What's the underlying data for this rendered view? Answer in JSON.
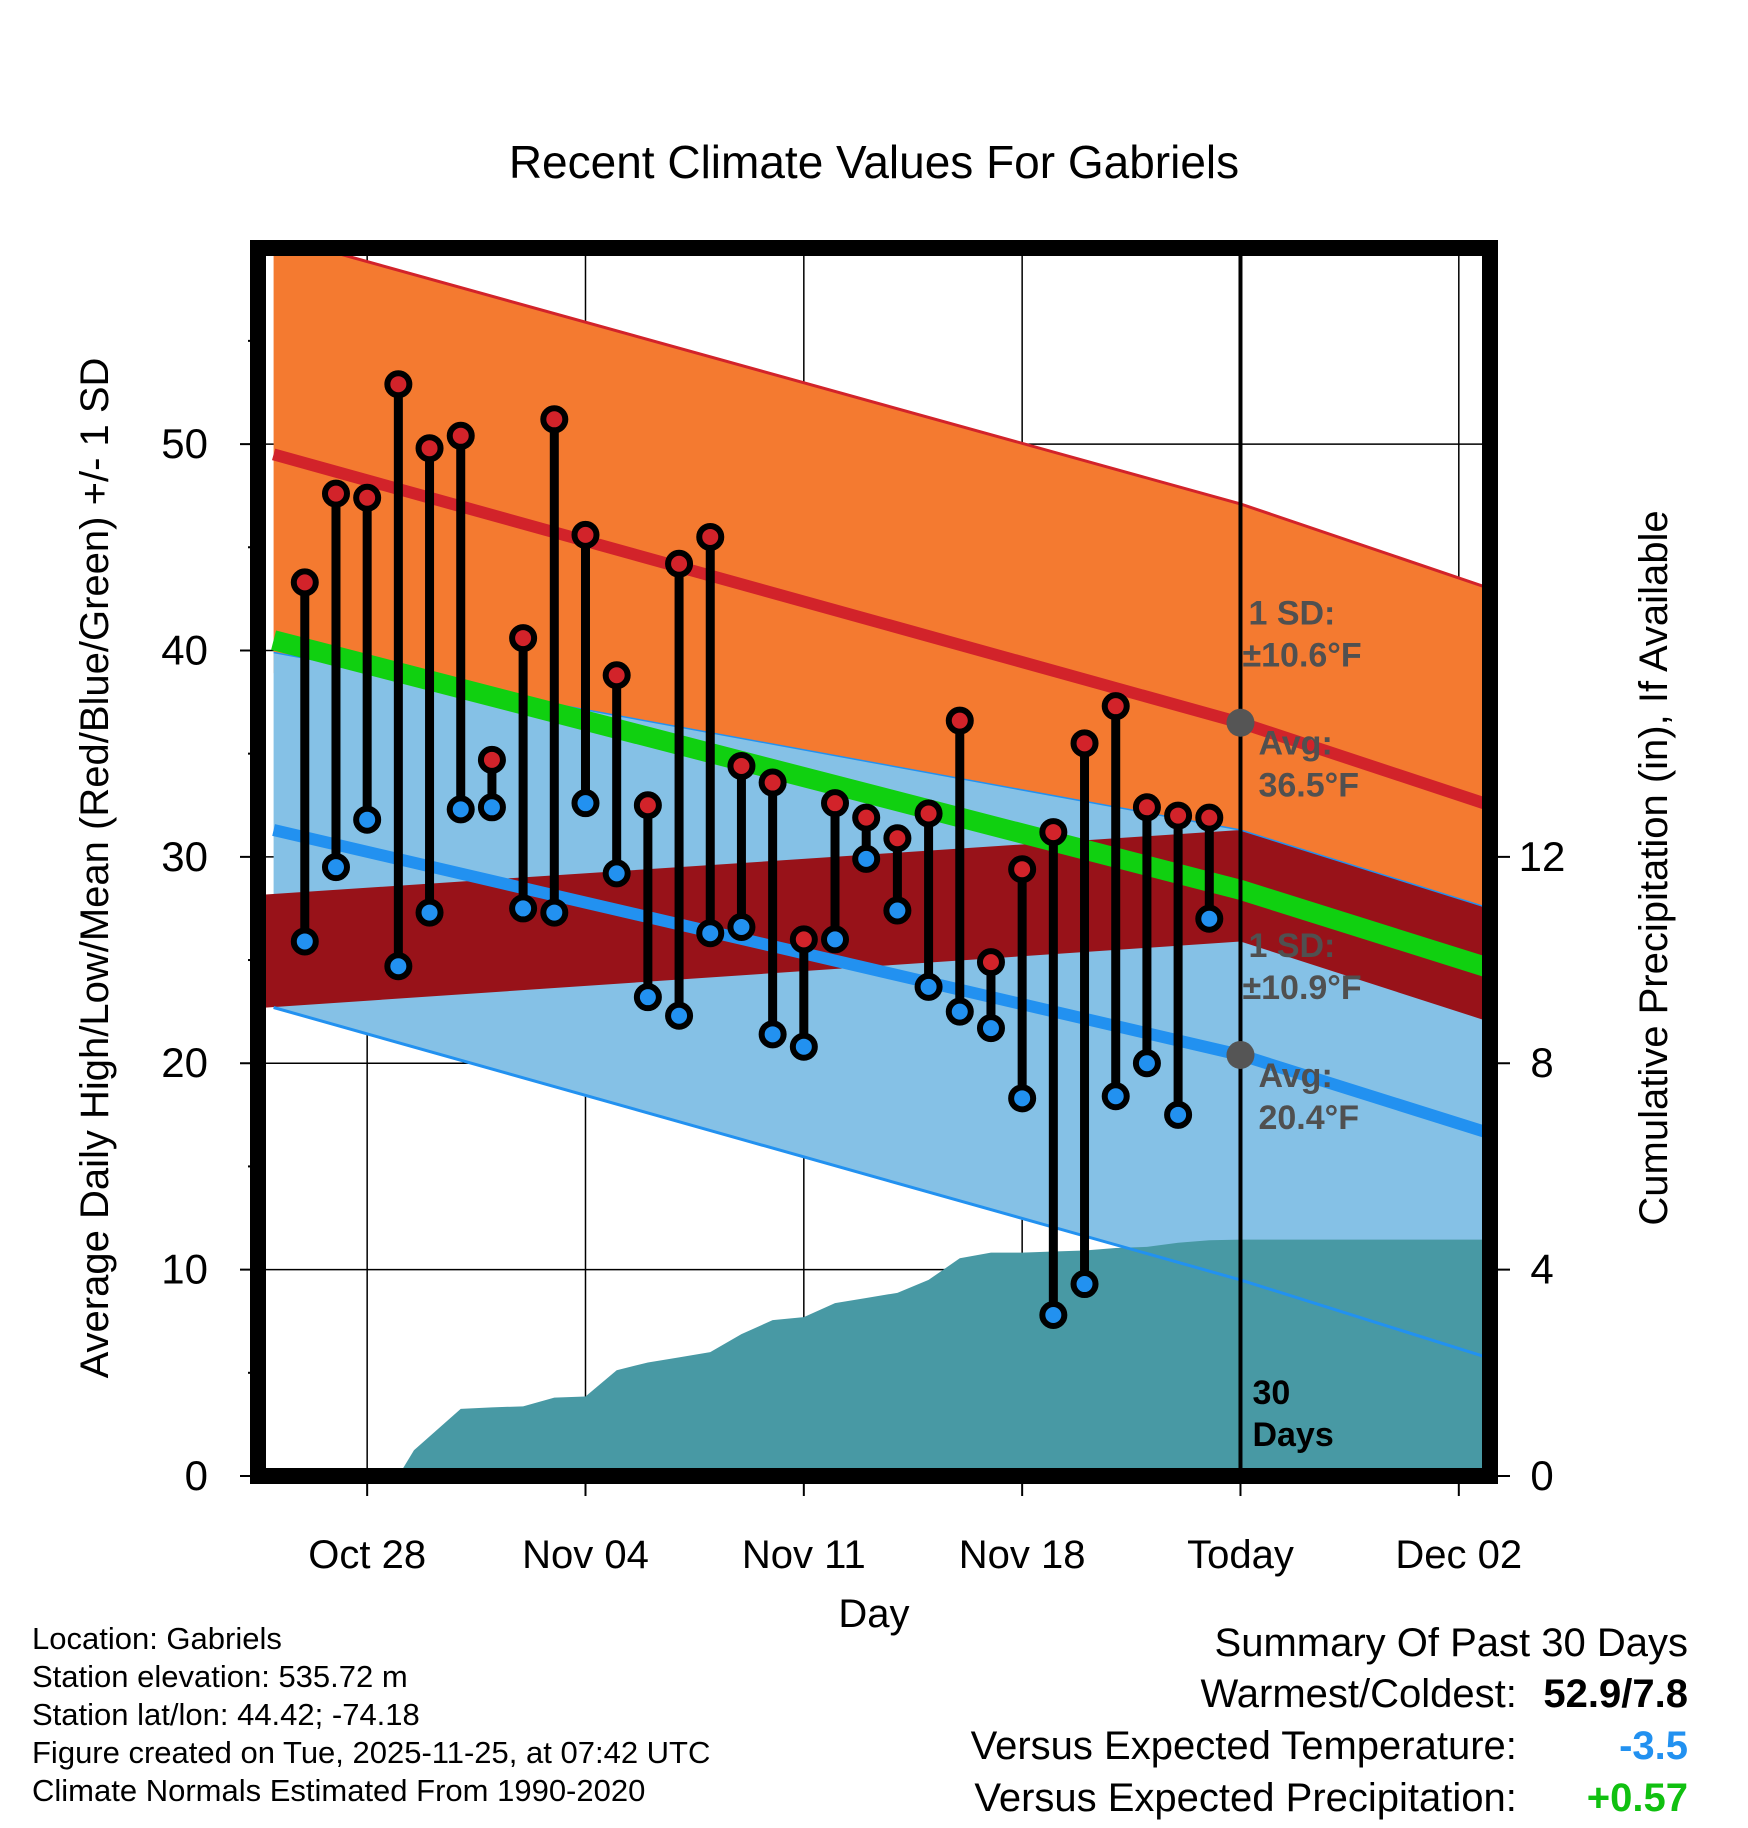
{
  "chart_data": {
    "type": "line",
    "title": "Recent Climate Values For Gabriels",
    "xlabel": "Day",
    "ylabel": "Average Daily High/Low/Mean (Red/Blue/Green) +/- 1 SD",
    "y2label": "Cumulative Precipitation (in), If Available",
    "xlim": [
      -3.5,
      36
    ],
    "ylim": [
      0,
      59.5
    ],
    "y2lim": [
      0,
      23.8
    ],
    "x_ticks": [
      {
        "x": 0,
        "label": "Oct 28"
      },
      {
        "x": 7,
        "label": "Nov 04"
      },
      {
        "x": 14,
        "label": "Nov 11"
      },
      {
        "x": 21,
        "label": "Nov 18"
      },
      {
        "x": 28,
        "label": "Today"
      },
      {
        "x": 35,
        "label": "Dec 02"
      }
    ],
    "y_ticks": [
      0,
      10,
      20,
      30,
      40,
      50
    ],
    "y2_ticks": [
      0,
      4,
      8,
      12
    ],
    "today_x": 28,
    "today_label": [
      "30",
      "Days"
    ],
    "normals": {
      "x": [
        -3,
        28,
        36
      ],
      "high_mean": [
        49.5,
        36.5,
        32.5
      ],
      "high_upper": [
        60.1,
        47.1,
        43.0
      ],
      "low_mean": [
        31.3,
        20.4,
        16.6
      ],
      "low_lower": [
        22.7,
        9.5,
        5.7
      ],
      "avg_mean": [
        40.5,
        28.4,
        24.6
      ]
    },
    "high_annotation": {
      "sd_label": "1 SD:",
      "sd_value": "±10.6°F",
      "avg_label": "Avg:",
      "avg_value": "36.5°F"
    },
    "low_annotation": {
      "sd_label": "1 SD:",
      "sd_value": "±10.9°F",
      "avg_label": "Avg:",
      "avg_value": "20.4°F"
    },
    "daily": {
      "x": [
        -2,
        -1,
        0,
        1,
        2,
        3,
        4,
        5,
        6,
        7,
        8,
        9,
        10,
        11,
        12,
        13,
        14,
        15,
        16,
        17,
        18,
        19,
        20,
        21,
        22,
        23,
        24,
        25,
        26,
        27
      ],
      "high": [
        43.3,
        47.6,
        47.4,
        52.9,
        49.8,
        50.4,
        34.7,
        40.6,
        51.2,
        45.6,
        38.8,
        32.5,
        44.2,
        45.5,
        34.4,
        33.6,
        26.0,
        32.6,
        31.9,
        30.9,
        32.1,
        36.6,
        24.9,
        29.4,
        31.2,
        35.5,
        37.3,
        32.4,
        32.0,
        31.9
      ],
      "low": [
        25.9,
        29.5,
        31.8,
        24.7,
        27.3,
        32.3,
        32.4,
        27.5,
        27.3,
        32.6,
        29.2,
        23.2,
        22.3,
        26.3,
        26.6,
        21.4,
        20.8,
        26.0,
        29.9,
        27.4,
        23.7,
        22.5,
        21.7,
        18.3,
        7.8,
        9.3,
        18.4,
        20.0,
        17.5,
        27.0
      ]
    },
    "precip": {
      "x": [
        -3,
        1,
        1.5,
        3,
        4,
        5,
        6,
        7,
        8,
        9,
        10,
        11,
        12,
        13,
        14,
        15,
        16,
        17,
        18,
        19,
        20,
        21,
        22,
        23,
        24,
        25,
        26,
        27,
        28,
        36
      ],
      "cum": [
        0,
        0,
        0.5,
        1.3,
        1.33,
        1.35,
        1.52,
        1.54,
        2.05,
        2.2,
        2.3,
        2.4,
        2.75,
        3.02,
        3.08,
        3.35,
        3.45,
        3.55,
        3.8,
        4.22,
        4.33,
        4.33,
        4.35,
        4.37,
        4.42,
        4.44,
        4.52,
        4.57,
        4.58,
        4.58
      ]
    }
  },
  "info": {
    "location": "Location: Gabriels",
    "elevation": "Station elevation: 535.72 m",
    "latlon": "Station lat/lon: 44.42; -74.18",
    "created": "Figure created on Tue, 2025-11-25, at 07:42 UTC",
    "normals": "Climate Normals Estimated From 1990-2020"
  },
  "summary": {
    "title": "Summary Of Past 30 Days",
    "warmest_label": "Warmest/Coldest:",
    "warmest_value": "52.9/7.8",
    "temp_label": "Versus Expected Temperature:",
    "temp_value": "-3.5",
    "precip_label": "Versus Expected Precipitation:",
    "precip_value": "+0.57"
  },
  "colors": {
    "high_band": "#f47a30",
    "high_line": "#d2232a",
    "low_band": "#85c1e6",
    "low_line": "#2291f0",
    "mean_line": "#10d010",
    "overlap": "#981219",
    "precip": "#4899a4",
    "temp_value": "#2291f0",
    "precip_value": "#10c010"
  }
}
